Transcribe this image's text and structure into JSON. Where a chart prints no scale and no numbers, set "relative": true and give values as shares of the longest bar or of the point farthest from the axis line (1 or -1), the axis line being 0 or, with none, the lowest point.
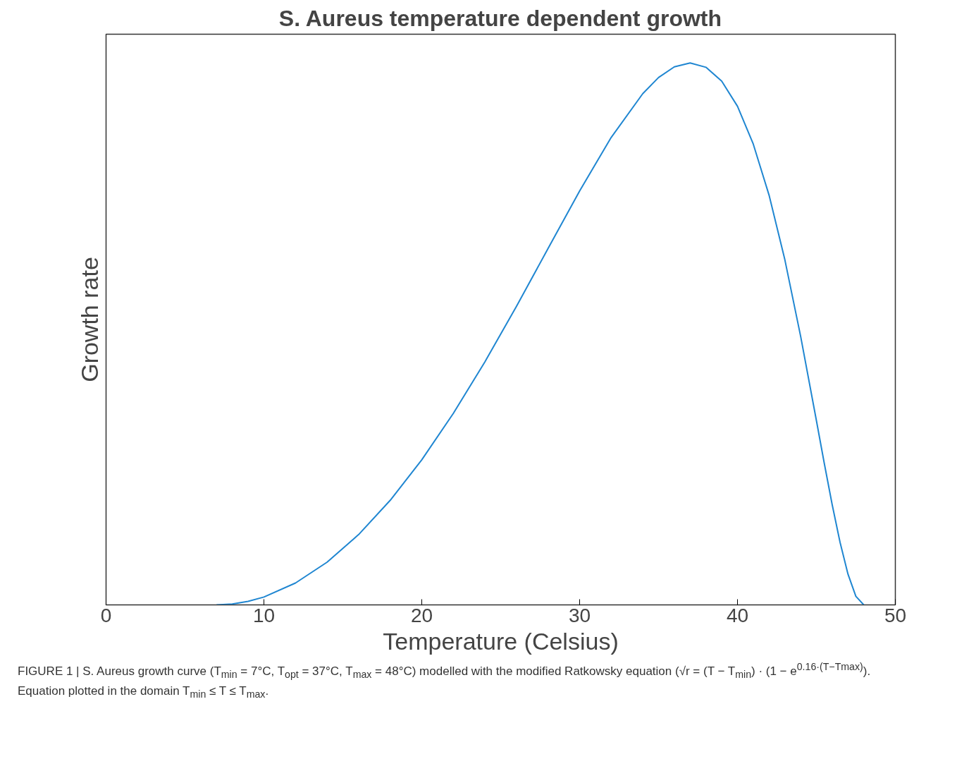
{
  "chart_data": {
    "type": "line",
    "title": "S. Aureus temperature dependent growth",
    "xlabel": "Temperature (Celsius)",
    "ylabel": "Growth rate",
    "relative": true,
    "xlim": [
      0,
      50
    ],
    "xticks": [
      0,
      10,
      20,
      30,
      40,
      50
    ],
    "grid": false,
    "x": [
      7,
      8,
      9,
      10,
      12,
      14,
      16,
      18,
      20,
      22,
      24,
      26,
      28,
      30,
      32,
      34,
      35,
      36,
      37,
      38,
      39,
      40,
      41,
      42,
      43,
      44,
      45,
      45.5,
      46,
      46.5,
      47,
      47.5,
      48
    ],
    "series": [
      {
        "color": "#1f86d1",
        "values": [
          0,
          0.0016,
          0.0065,
          0.0145,
          0.0403,
          0.0787,
          0.1297,
          0.1929,
          0.2677,
          0.3534,
          0.4485,
          0.551,
          0.6576,
          0.7638,
          0.8625,
          0.9433,
          0.9731,
          0.9928,
          1,
          0.992,
          0.9664,
          0.9201,
          0.8503,
          0.7561,
          0.637,
          0.4958,
          0.3401,
          0.261,
          0.1849,
          0.1151,
          0.0567,
          0.0157,
          0
        ]
      }
    ],
    "annotations": [
      "FIGURE 1 | S. Aureus growth curve (T$_{min}$ = 7°C, T$_{opt}$ = 37°C, T$_{max}$ = 48°C) modelled with the modified Ratkowsky equation (√r = (T − T$_{min}$) · (1 − e$^{0.16·(T−Tmax)}$).",
      "Equation plotted in the domain T$_{min}$ ≤ T ≤ T$_{max}$."
    ]
  }
}
